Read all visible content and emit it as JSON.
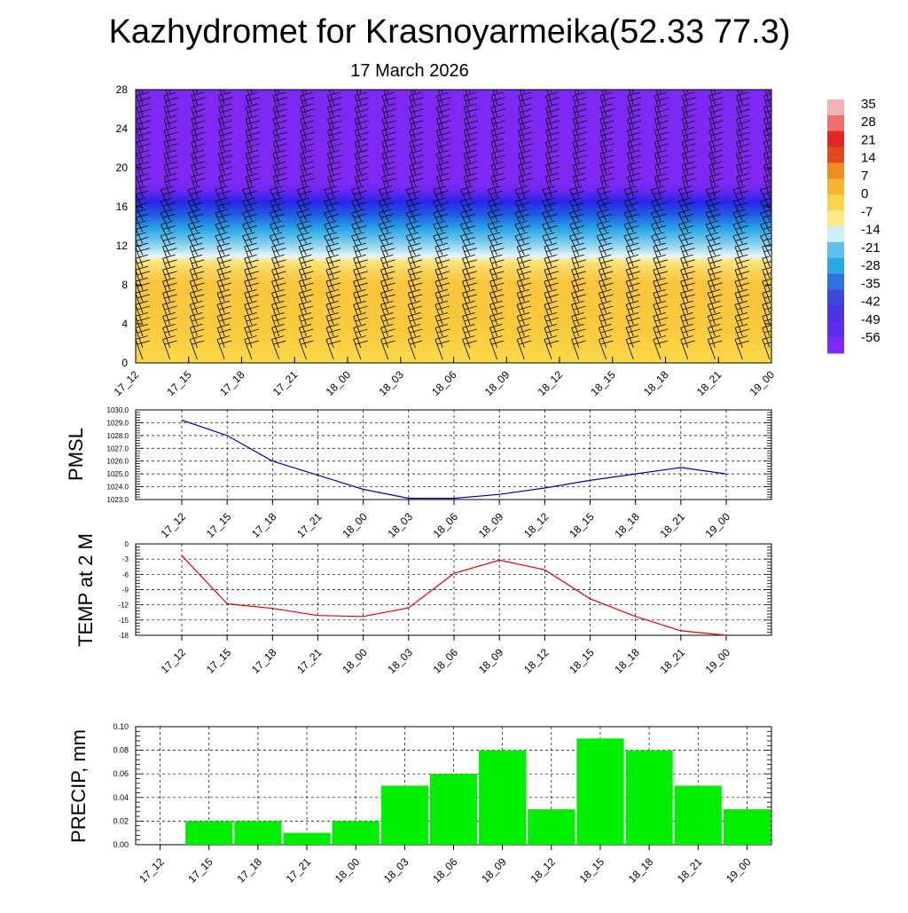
{
  "title": "Kazhydromet for Krasnoyarmeika(52.33 77.3)",
  "subtitle": "17 March 2026",
  "time_labels": [
    "17_12",
    "17_15",
    "17_18",
    "17_21",
    "18_00",
    "18_03",
    "18_06",
    "18_09",
    "18_12",
    "18_15",
    "18_18",
    "18_21",
    "19_00"
  ],
  "colorbar": {
    "labels": [
      "35",
      "28",
      "21",
      "14",
      "7",
      "0",
      "-7",
      "-14",
      "-21",
      "-28",
      "-35",
      "-42",
      "-49",
      "-56"
    ]
  },
  "chart_data": [
    {
      "type": "heatmap",
      "name": "vertical temperature and wind cross-section",
      "ylim": [
        0,
        28
      ],
      "yticks": [
        "0",
        "4",
        "8",
        "12",
        "16",
        "20",
        "24",
        "28"
      ],
      "note": "warm (approx -7..-2) below ~11 km, cold (-28..-50) between 12 and 17 km, coldest (~-56) above 17 km; wind barbs overlaid"
    },
    {
      "type": "line",
      "name": "pmsl",
      "ylabel": "PMSL",
      "ylim": [
        1023,
        1030
      ],
      "yticks": [
        "1023.0",
        "1024.0",
        "1025.0",
        "1026.0",
        "1027.0",
        "1028.0",
        "1029.0",
        "1030.0"
      ],
      "values": [
        1029.2,
        1028.0,
        1026.0,
        1024.9,
        1023.8,
        1023.1,
        1023.1,
        1023.4,
        1023.9,
        1024.5,
        1025.0,
        1025.5,
        1025.0
      ],
      "color": "#0000cc"
    },
    {
      "type": "line",
      "name": "temp2m",
      "ylabel": "TEMP at 2 M",
      "ylim": [
        -18,
        0
      ],
      "yticks": [
        "0",
        "-3",
        "-6",
        "-9",
        "-12",
        "-15",
        "-18"
      ],
      "values": [
        -2.3,
        -11.8,
        -12.7,
        -14.1,
        -14.3,
        -12.6,
        -5.8,
        -3.2,
        -5.1,
        -10.8,
        -14.3,
        -17.1,
        -18.0
      ],
      "color": "#ee0000"
    },
    {
      "type": "bar",
      "name": "precip",
      "ylabel": "PRECIP, mm",
      "ylim": [
        0,
        0.1
      ],
      "yticks": [
        "0.00",
        "0.02",
        "0.04",
        "0.06",
        "0.08",
        "0.10"
      ],
      "values": [
        0,
        0.02,
        0.02,
        0.01,
        0.02,
        0.05,
        0.06,
        0.08,
        0.03,
        0.09,
        0.08,
        0.05,
        0.03
      ],
      "color": "#00ee00"
    }
  ]
}
